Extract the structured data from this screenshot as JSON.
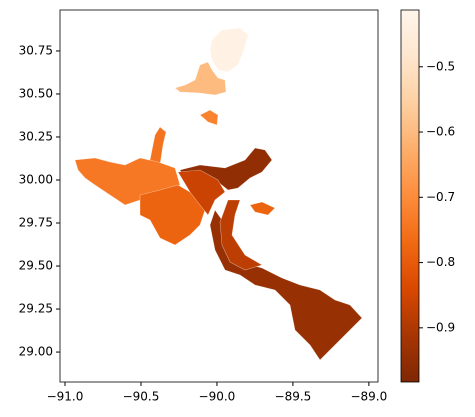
{
  "chart_data": {
    "type": "choropleth",
    "values": [
      -0.43,
      -0.6,
      -0.72,
      -0.75,
      -0.74,
      -0.95,
      -0.78,
      -0.86,
      -0.94,
      -0.88,
      -0.78
    ],
    "xlim": [
      -91.033,
      -88.94
    ],
    "ylim": [
      28.826,
      30.988
    ],
    "xticks": [
      {
        "value": -91,
        "label": "−91.0"
      },
      {
        "value": -90.5,
        "label": "−90.5"
      },
      {
        "value": -90,
        "label": "−90.0"
      },
      {
        "value": -89.5,
        "label": "−89.5"
      },
      {
        "value": -89,
        "label": "−89.0"
      }
    ],
    "yticks": [
      {
        "value": 29,
        "label": "29.00"
      },
      29.25,
      {
        "value": 29.5,
        "label": "29.50"
      },
      29.75,
      {
        "value": 30,
        "label": "30.00"
      },
      30.25,
      {
        "value": 30.5,
        "label": "30.50"
      },
      30.75
    ],
    "clim": [
      -0.983,
      -0.413
    ],
    "cticks": [
      {
        "value": -0.9,
        "label": "−0.9"
      },
      {
        "value": -0.8,
        "label": "−0.8"
      },
      {
        "value": -0.7,
        "label": "−0.7"
      },
      {
        "value": -0.6,
        "label": "−0.6"
      },
      {
        "value": -0.5,
        "label": "−0.5"
      }
    ],
    "colorscale": [
      "#7f2704",
      "#a63603",
      "#d94801",
      "#f16913",
      "#fd8d3c",
      "#fdae6b",
      "#fdd0a2",
      "#fee6ce",
      "#fff5eb"
    ]
  }
}
